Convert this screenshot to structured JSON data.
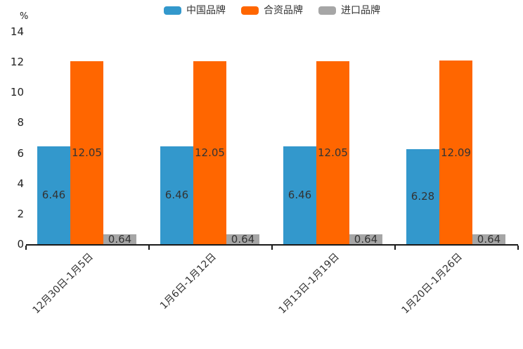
{
  "chart_data": {
    "type": "bar",
    "title": "",
    "xlabel": "",
    "ylabel": "%",
    "categories": [
      "12月30日-1月5日",
      "1月6日-1月12日",
      "1月13日-1月19日",
      "1月20日-1月26日"
    ],
    "series": [
      {
        "name": "中国品牌",
        "color": "#3398CC",
        "values": [
          6.46,
          6.46,
          6.46,
          6.28
        ]
      },
      {
        "name": "合资品牌",
        "color": "#FF6600",
        "values": [
          12.05,
          12.05,
          12.05,
          12.09
        ]
      },
      {
        "name": "进口品牌",
        "color": "#A6A6A6",
        "values": [
          0.64,
          0.64,
          0.64,
          0.64
        ]
      }
    ],
    "ylim": [
      0,
      14
    ],
    "yticks": [
      0,
      2,
      4,
      6,
      8,
      10,
      12,
      14
    ],
    "grid": "off",
    "legend_position": "top",
    "value_labels": "inside",
    "value_label_decimals": 2
  },
  "colors": {
    "axis": "#1a1a1a",
    "tick_text": "#222222",
    "label_text": "#333333"
  }
}
